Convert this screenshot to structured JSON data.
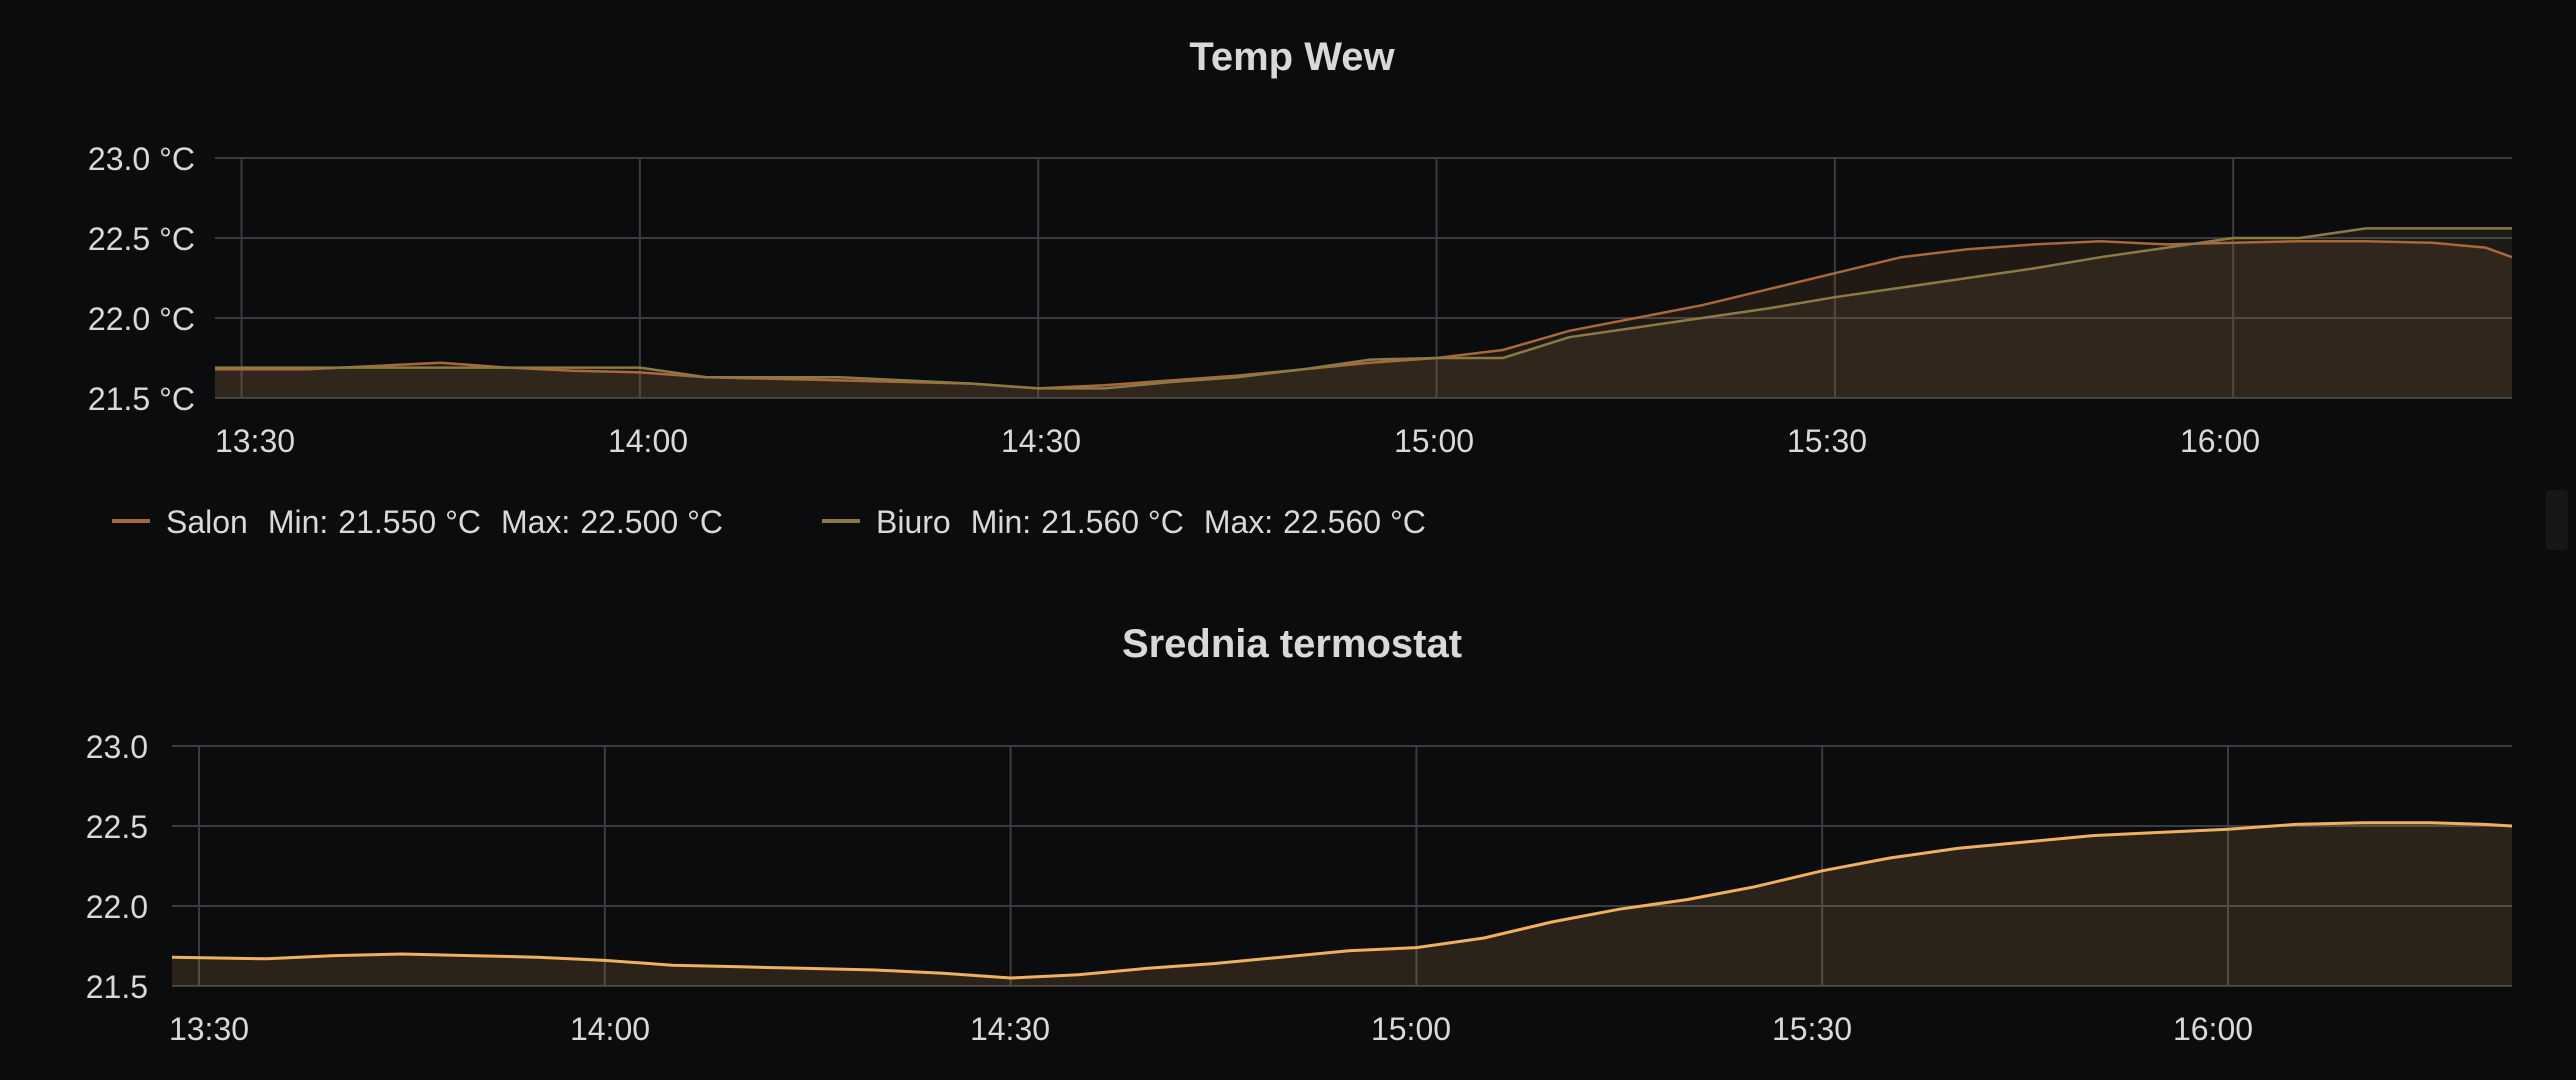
{
  "panels": [
    {
      "title": "Temp Wew",
      "y_tick_labels": [
        "23.0 °C",
        "22.5 °C",
        "22.0 °C",
        "21.5 °C"
      ],
      "x_tick_labels": [
        "13:30",
        "14:00",
        "14:30",
        "15:00",
        "15:30",
        "16:00"
      ],
      "legend": [
        {
          "name": "Salon",
          "min_label": "Min:",
          "min": "21.550 °C",
          "max_label": "Max:",
          "max": "22.500 °C",
          "color": "#a8683a"
        },
        {
          "name": "Biuro",
          "min_label": "Min:",
          "min": "21.560 °C",
          "max_label": "Max:",
          "max": "22.560 °C",
          "color": "#8c7a45"
        }
      ]
    },
    {
      "title": "Srednia termostat",
      "y_tick_labels": [
        "23.0",
        "22.5",
        "22.0",
        "21.5"
      ],
      "x_tick_labels": [
        "13:30",
        "14:00",
        "14:30",
        "15:00",
        "15:30",
        "16:00"
      ]
    }
  ],
  "chart_data": [
    {
      "type": "line",
      "title": "Temp Wew",
      "xlabel": "",
      "ylabel": "",
      "x_range": [
        "13:28",
        "16:21"
      ],
      "ylim": [
        21.5,
        23.0
      ],
      "grid": true,
      "legend_position": "bottom-left",
      "fill": true,
      "series": [
        {
          "name": "Salon",
          "color": "#a8683a",
          "x": [
            "13:28",
            "13:35",
            "13:40",
            "13:45",
            "13:50",
            "13:55",
            "14:00",
            "14:05",
            "14:10",
            "14:15",
            "14:20",
            "14:25",
            "14:30",
            "14:35",
            "14:40",
            "14:45",
            "14:50",
            "14:55",
            "15:00",
            "15:05",
            "15:10",
            "15:15",
            "15:20",
            "15:25",
            "15:30",
            "15:35",
            "15:40",
            "15:45",
            "15:50",
            "15:55",
            "16:00",
            "16:05",
            "16:10",
            "16:15",
            "16:19",
            "16:21"
          ],
          "y": [
            21.68,
            21.68,
            21.7,
            21.72,
            21.69,
            21.67,
            21.66,
            21.63,
            21.62,
            21.61,
            21.6,
            21.59,
            21.56,
            21.58,
            21.61,
            21.64,
            21.68,
            21.72,
            21.75,
            21.8,
            21.92,
            22.0,
            22.08,
            22.18,
            22.28,
            22.38,
            22.43,
            22.46,
            22.48,
            22.46,
            22.47,
            22.48,
            22.48,
            22.47,
            22.44,
            22.38
          ]
        },
        {
          "name": "Biuro",
          "color": "#8c7a45",
          "x": [
            "13:28",
            "13:35",
            "13:40",
            "13:45",
            "13:50",
            "13:55",
            "14:00",
            "14:05",
            "14:10",
            "14:15",
            "14:20",
            "14:25",
            "14:30",
            "14:35",
            "14:40",
            "14:45",
            "14:50",
            "14:55",
            "15:00",
            "15:05",
            "15:10",
            "15:15",
            "15:20",
            "15:25",
            "15:30",
            "15:35",
            "15:40",
            "15:45",
            "15:50",
            "15:55",
            "16:00",
            "16:05",
            "16:10",
            "16:15",
            "16:19",
            "16:21"
          ],
          "y": [
            21.69,
            21.69,
            21.69,
            21.69,
            21.69,
            21.69,
            21.69,
            21.63,
            21.63,
            21.63,
            21.61,
            21.59,
            21.56,
            21.56,
            21.6,
            21.63,
            21.68,
            21.74,
            21.75,
            21.75,
            21.88,
            21.94,
            22.0,
            22.06,
            22.13,
            22.19,
            22.25,
            22.31,
            22.38,
            22.44,
            22.5,
            22.5,
            22.56,
            22.56,
            22.56,
            22.56
          ]
        }
      ]
    },
    {
      "type": "line",
      "title": "Srednia termostat",
      "xlabel": "",
      "ylabel": "",
      "x_range": [
        "13:28",
        "16:21"
      ],
      "ylim": [
        21.5,
        23.0
      ],
      "grid": true,
      "fill": true,
      "series": [
        {
          "color": "#f0b060",
          "x": [
            "13:28",
            "13:35",
            "13:40",
            "13:45",
            "13:50",
            "13:55",
            "14:00",
            "14:05",
            "14:10",
            "14:15",
            "14:20",
            "14:25",
            "14:30",
            "14:35",
            "14:40",
            "14:45",
            "14:50",
            "14:55",
            "15:00",
            "15:05",
            "15:10",
            "15:15",
            "15:20",
            "15:25",
            "15:30",
            "15:35",
            "15:40",
            "15:45",
            "15:50",
            "15:55",
            "16:00",
            "16:05",
            "16:10",
            "16:15",
            "16:19",
            "16:21"
          ],
          "y": [
            21.68,
            21.67,
            21.69,
            21.7,
            21.69,
            21.68,
            21.66,
            21.63,
            21.62,
            21.61,
            21.6,
            21.58,
            21.55,
            21.57,
            21.61,
            21.64,
            21.68,
            21.72,
            21.74,
            21.8,
            21.9,
            21.98,
            22.04,
            22.12,
            22.22,
            22.3,
            22.36,
            22.4,
            22.44,
            22.46,
            22.48,
            22.51,
            22.52,
            22.52,
            22.51,
            22.5
          ]
        }
      ]
    }
  ]
}
